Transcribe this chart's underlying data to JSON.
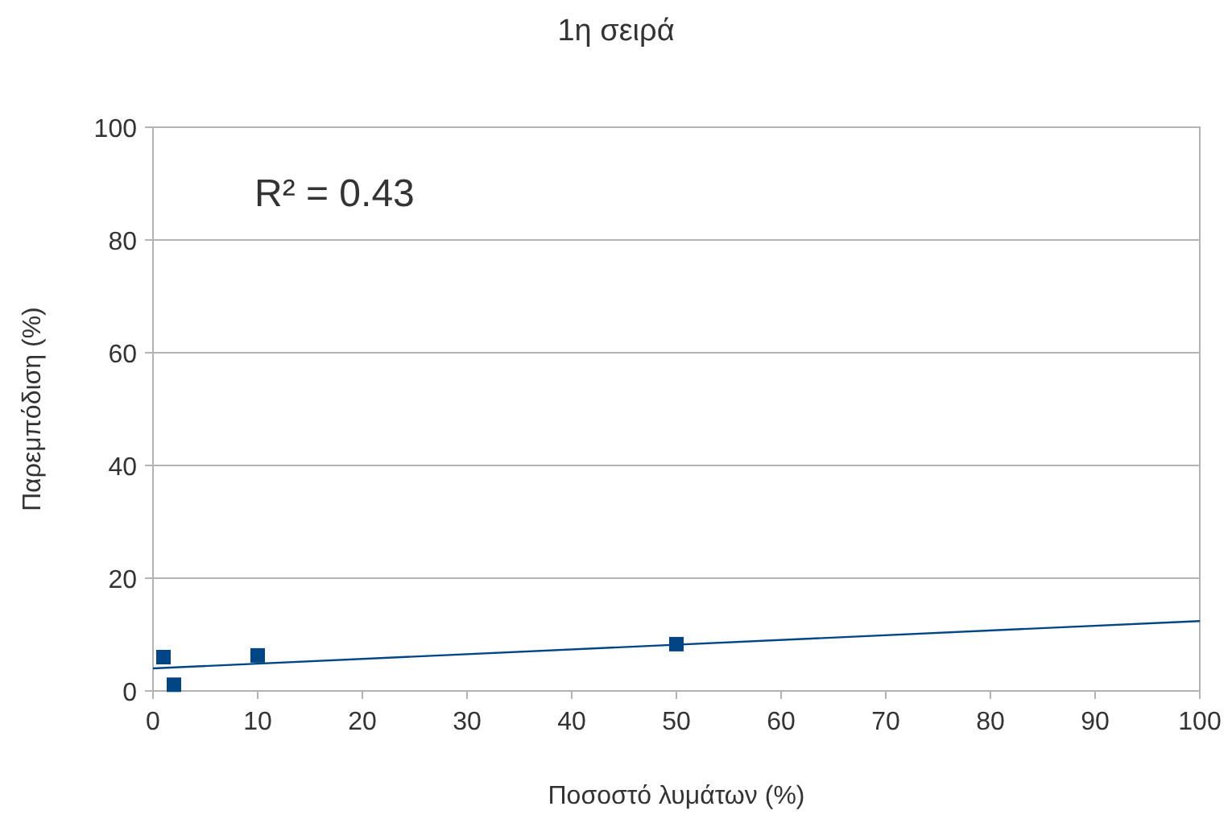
{
  "chart_data": {
    "type": "scatter",
    "title": "1η σειρά",
    "xlabel": "Ποσοστό λυμάτων (%)",
    "ylabel": "Παρεμπόδιση (%)",
    "xlim": [
      0,
      100
    ],
    "xticks": [
      0,
      10,
      20,
      30,
      40,
      50,
      60,
      70,
      80,
      90,
      100
    ],
    "ylim": [
      0,
      100
    ],
    "yticks": [
      0,
      20,
      40,
      60,
      80,
      100
    ],
    "grid": "y",
    "annotations": [
      "R² = 0.43"
    ],
    "series": [
      {
        "color": "#004586",
        "marker": "square",
        "x": [
          1,
          2,
          10,
          50
        ],
        "values": [
          6,
          1.1,
          6.3,
          8.3
        ]
      },
      {
        "type": "line",
        "color": "#004586",
        "marker": "none",
        "x": [
          0,
          100
        ],
        "values": [
          4,
          12.4
        ]
      }
    ]
  }
}
